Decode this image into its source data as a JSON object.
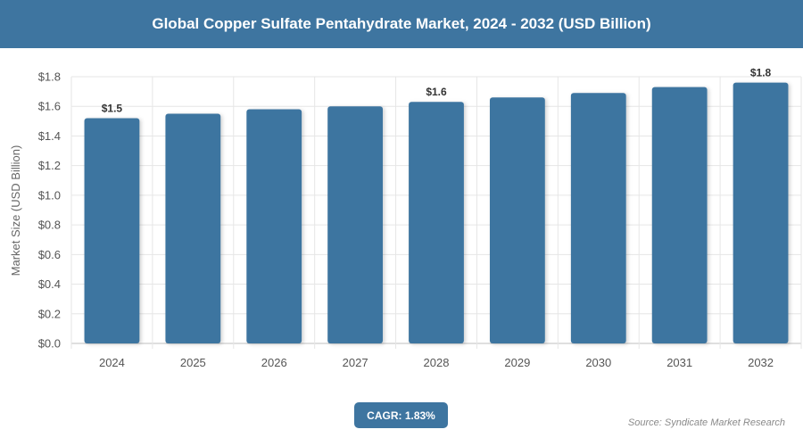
{
  "header": {
    "title": "Global Copper Sulfate Pentahydrate Market, 2024 - 2032 (USD Billion)"
  },
  "chart_data": {
    "type": "bar",
    "title": "Global Copper Sulfate Pentahydrate Market, 2024 - 2032 (USD Billion)",
    "ylabel": "Market Size (USD Billion)",
    "xlabel": "",
    "categories": [
      "2024",
      "2025",
      "2026",
      "2027",
      "2028",
      "2029",
      "2030",
      "2031",
      "2032"
    ],
    "values": [
      1.52,
      1.55,
      1.58,
      1.6,
      1.63,
      1.66,
      1.69,
      1.73,
      1.76
    ],
    "data_labels": {
      "2024": "$1.5",
      "2028": "$1.6",
      "2032": "$1.8"
    },
    "yticks": [
      "$0.0",
      "$0.2",
      "$0.4",
      "$0.6",
      "$0.8",
      "$1.0",
      "$1.2",
      "$1.4",
      "$1.6",
      "$1.8"
    ],
    "ylim": [
      0,
      1.8
    ],
    "grid": true,
    "bar_color": "#3e75a0"
  },
  "cagr_label": "CAGR: 1.83%",
  "source": "Source: Syndicate Market Research"
}
